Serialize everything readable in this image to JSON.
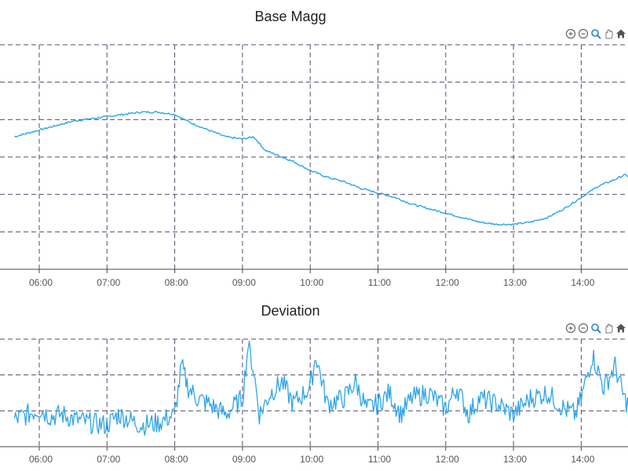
{
  "toolbar_icons": [
    "zoom-in-icon",
    "zoom-out-icon",
    "magnify-icon",
    "pan-icon",
    "home-icon"
  ],
  "colors": {
    "line": "#2fa4e7",
    "grid": "#5a4a6e",
    "axis": "#444444"
  },
  "chart_data": [
    {
      "type": "line",
      "title": "Base Magg",
      "xlabel": "",
      "ylabel": "",
      "grid": true,
      "x_ticks": [
        "06:00",
        "07:00",
        "08:00",
        "09:00",
        "10:00",
        "11:00",
        "12:00",
        "13:00",
        "14:00"
      ],
      "x_range": [
        "05:38",
        "14:44"
      ],
      "y_axis_labels_visible": false,
      "series": [
        {
          "x": [
            "05:38",
            "05:45",
            "06:00",
            "06:15",
            "06:30",
            "06:45",
            "07:00",
            "07:15",
            "07:30",
            "07:45",
            "08:00",
            "08:15",
            "08:30",
            "08:45",
            "09:00",
            "09:10",
            "09:15",
            "09:20",
            "09:30",
            "09:40",
            "09:45",
            "10:00",
            "10:15",
            "10:30",
            "10:45",
            "11:00",
            "11:15",
            "11:30",
            "11:45",
            "12:00",
            "12:15",
            "12:30",
            "12:45",
            "13:00",
            "13:15",
            "13:30",
            "13:45",
            "14:00",
            "14:15",
            "14:30",
            "14:38",
            "14:44"
          ],
          "y": [
            0.59,
            0.6,
            0.62,
            0.64,
            0.66,
            0.67,
            0.68,
            0.69,
            0.7,
            0.7,
            0.69,
            0.65,
            0.62,
            0.59,
            0.58,
            0.59,
            0.56,
            0.53,
            0.51,
            0.49,
            0.48,
            0.44,
            0.41,
            0.39,
            0.36,
            0.34,
            0.32,
            0.29,
            0.27,
            0.25,
            0.23,
            0.21,
            0.2,
            0.2,
            0.21,
            0.23,
            0.27,
            0.32,
            0.37,
            0.4,
            0.42,
            0.41
          ]
        }
      ]
    },
    {
      "type": "line",
      "title": "Deviation",
      "xlabel": "",
      "ylabel": "",
      "grid": true,
      "x_ticks": [
        "06:00",
        "07:00",
        "08:00",
        "09:00",
        "10:00",
        "11:00",
        "12:00",
        "13:00",
        "14:00"
      ],
      "x_range": [
        "05:38",
        "14:44"
      ],
      "y_axis_labels_visible": false,
      "series": [
        {
          "x": [
            "05:38",
            "05:50",
            "06:00",
            "06:10",
            "06:20",
            "06:30",
            "06:45",
            "07:00",
            "07:10",
            "07:20",
            "07:30",
            "07:45",
            "08:00",
            "08:06",
            "08:12",
            "08:20",
            "08:30",
            "08:45",
            "09:00",
            "09:05",
            "09:10",
            "09:15",
            "09:25",
            "09:35",
            "09:45",
            "10:00",
            "10:05",
            "10:15",
            "10:30",
            "10:40",
            "10:50",
            "11:00",
            "11:10",
            "11:20",
            "11:30",
            "11:45",
            "12:00",
            "12:10",
            "12:20",
            "12:30",
            "12:45",
            "13:00",
            "13:15",
            "13:30",
            "13:45",
            "13:55",
            "14:00",
            "14:10",
            "14:20",
            "14:30",
            "14:38",
            "14:44"
          ],
          "y": [
            0.25,
            0.3,
            0.35,
            0.28,
            0.3,
            0.26,
            0.22,
            0.2,
            0.3,
            0.25,
            0.2,
            0.22,
            0.3,
            0.75,
            0.55,
            0.45,
            0.4,
            0.3,
            0.45,
            0.95,
            0.7,
            0.3,
            0.5,
            0.6,
            0.4,
            0.55,
            0.85,
            0.4,
            0.45,
            0.6,
            0.35,
            0.4,
            0.5,
            0.3,
            0.45,
            0.5,
            0.35,
            0.55,
            0.3,
            0.45,
            0.4,
            0.3,
            0.45,
            0.5,
            0.35,
            0.3,
            0.45,
            0.85,
            0.55,
            0.75,
            0.45,
            0.35
          ]
        }
      ]
    }
  ]
}
